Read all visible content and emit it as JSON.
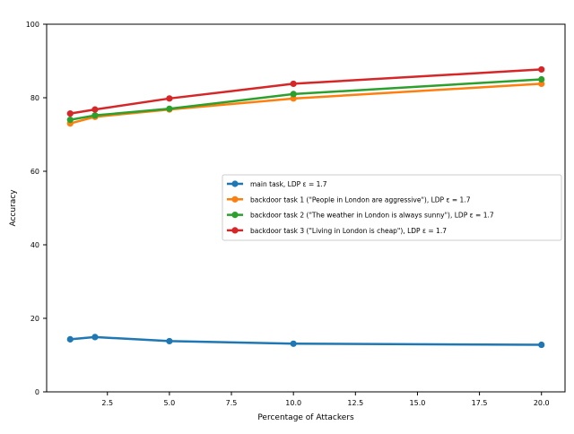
{
  "chart_data": {
    "type": "line",
    "title": "",
    "xlabel": "Percentage of Attackers",
    "ylabel": "Accuracy",
    "xlim": [
      0.05,
      20.95
    ],
    "ylim": [
      0,
      100
    ],
    "xticks": [
      2.5,
      5.0,
      7.5,
      10.0,
      12.5,
      15.0,
      17.5,
      20.0
    ],
    "xtick_labels": [
      "2.5",
      "5.0",
      "7.5",
      "10.0",
      "12.5",
      "15.0",
      "17.5",
      "20.0"
    ],
    "yticks": [
      0,
      20,
      40,
      60,
      80,
      100
    ],
    "ytick_labels": [
      "0",
      "20",
      "40",
      "60",
      "80",
      "100"
    ],
    "grid": false,
    "legend_position": "center-right",
    "x": [
      1,
      2,
      5,
      10,
      20
    ],
    "series": [
      {
        "name": "main task, LDP ε = 1.7",
        "color": "#1f77b4",
        "values": [
          14.3,
          14.9,
          13.8,
          13.1,
          12.8
        ]
      },
      {
        "name": "backdoor task 1 (\"People in London are aggressive\"), LDP ε = 1.7",
        "color": "#ff7f0e",
        "values": [
          73.0,
          74.8,
          76.8,
          79.8,
          83.8
        ]
      },
      {
        "name": "backdoor task 2 (\"The weather in London is always sunny\"), LDP ε = 1.7",
        "color": "#2ca02c",
        "values": [
          74.0,
          75.2,
          77.0,
          81.0,
          85.0
        ]
      },
      {
        "name": "backdoor task 3 (\"Living in London is cheap\"), LDP ε = 1.7",
        "color": "#d62728",
        "values": [
          75.7,
          76.8,
          79.8,
          83.8,
          87.7
        ]
      }
    ]
  }
}
